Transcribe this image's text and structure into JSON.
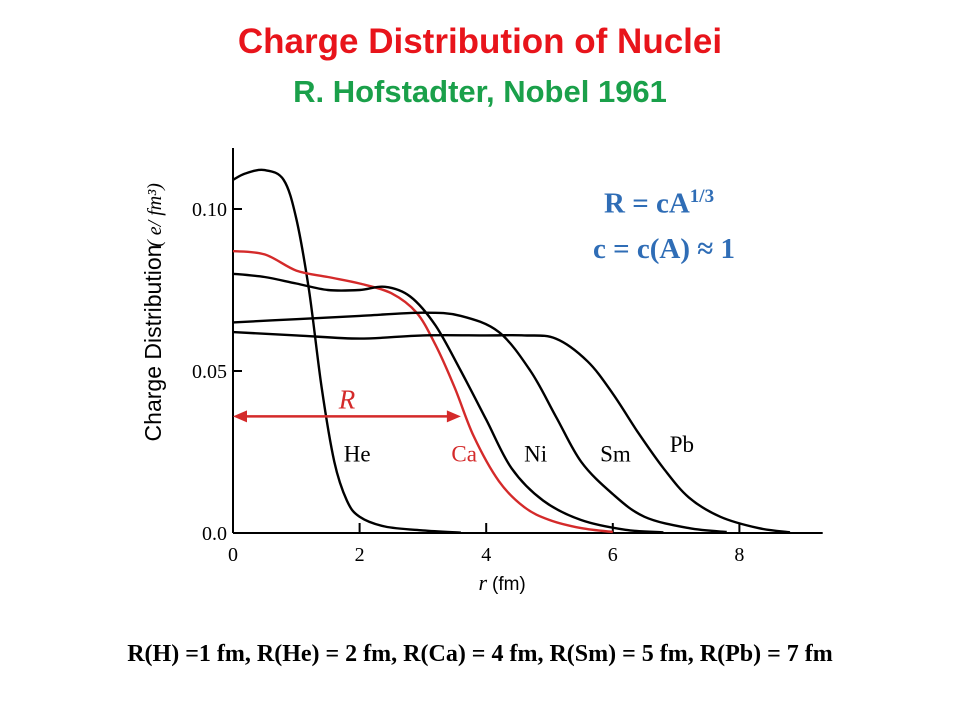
{
  "title": "Charge Distribution of Nuclei",
  "subtitle": "R. Hofstadter, Nobel 1961",
  "formula": {
    "line1_main": "R = cA",
    "line1_exp": "1/3",
    "line2": "c = c(A) ≈ 1"
  },
  "footer": "R(H) =1 fm, R(He) = 2 fm, R(Ca) = 4 fm, R(Sm) = 5 fm, R(Pb) = 7 fm",
  "colors": {
    "title": "#e8141b",
    "subtitle": "#1aa04a",
    "formula": "#2f6db6",
    "ca_curve": "#d42a2a",
    "curves": "#000000"
  },
  "chart_data": {
    "type": "line",
    "xlabel": "r",
    "xunit": "(fm)",
    "ylabel": "Charge Distribution",
    "yunit": "( e/ fm³)",
    "xlim": [
      0,
      9
    ],
    "ylim": [
      0,
      0.12
    ],
    "xticks": [
      0,
      2,
      4,
      6,
      8
    ],
    "xtick_labels": [
      "0",
      "2",
      "4",
      "6",
      "8"
    ],
    "yticks": [
      0.0,
      0.05,
      0.1
    ],
    "ytick_labels": [
      "0.0",
      "0.05",
      "0.10"
    ],
    "radius_annotation": {
      "label": "R",
      "from": 0,
      "to": 3.6,
      "y": 0.036
    },
    "series": [
      {
        "name": "He",
        "label_at": [
          1.75,
          0.022
        ],
        "points": [
          [
            0,
            0.109
          ],
          [
            0.2,
            0.111
          ],
          [
            0.5,
            0.112
          ],
          [
            0.8,
            0.109
          ],
          [
            1.0,
            0.097
          ],
          [
            1.2,
            0.075
          ],
          [
            1.4,
            0.045
          ],
          [
            1.6,
            0.022
          ],
          [
            1.8,
            0.01
          ],
          [
            2.0,
            0.005
          ],
          [
            2.4,
            0.002
          ],
          [
            3.0,
            0.0008
          ],
          [
            3.6,
            0.0001
          ]
        ]
      },
      {
        "name": "Ca",
        "label_at": [
          3.45,
          0.022
        ],
        "points": [
          [
            0,
            0.087
          ],
          [
            0.5,
            0.086
          ],
          [
            1.0,
            0.081
          ],
          [
            1.5,
            0.079
          ],
          [
            2.0,
            0.077
          ],
          [
            2.5,
            0.074
          ],
          [
            2.9,
            0.068
          ],
          [
            3.2,
            0.058
          ],
          [
            3.5,
            0.045
          ],
          [
            3.8,
            0.03
          ],
          [
            4.2,
            0.016
          ],
          [
            4.6,
            0.008
          ],
          [
            5.0,
            0.004
          ],
          [
            5.5,
            0.0015
          ],
          [
            6.0,
            0.0003
          ]
        ]
      },
      {
        "name": "Ni",
        "label_at": [
          4.6,
          0.022
        ],
        "points": [
          [
            0,
            0.08
          ],
          [
            0.5,
            0.079
          ],
          [
            1.0,
            0.077
          ],
          [
            1.5,
            0.075
          ],
          [
            2.0,
            0.075
          ],
          [
            2.4,
            0.076
          ],
          [
            2.8,
            0.073
          ],
          [
            3.2,
            0.064
          ],
          [
            3.6,
            0.05
          ],
          [
            4.0,
            0.035
          ],
          [
            4.4,
            0.02
          ],
          [
            4.9,
            0.01
          ],
          [
            5.5,
            0.004
          ],
          [
            6.2,
            0.001
          ],
          [
            6.8,
            0.0002
          ]
        ]
      },
      {
        "name": "Sm",
        "label_at": [
          5.8,
          0.022
        ],
        "points": [
          [
            0,
            0.065
          ],
          [
            1.0,
            0.066
          ],
          [
            2.0,
            0.067
          ],
          [
            3.0,
            0.068
          ],
          [
            3.6,
            0.067
          ],
          [
            4.2,
            0.062
          ],
          [
            4.7,
            0.05
          ],
          [
            5.1,
            0.036
          ],
          [
            5.5,
            0.022
          ],
          [
            6.0,
            0.012
          ],
          [
            6.5,
            0.005
          ],
          [
            7.2,
            0.0015
          ],
          [
            7.8,
            0.0003
          ]
        ]
      },
      {
        "name": "Pb",
        "label_at": [
          6.9,
          0.025
        ],
        "points": [
          [
            0,
            0.062
          ],
          [
            1.0,
            0.061
          ],
          [
            2.0,
            0.06
          ],
          [
            3.0,
            0.061
          ],
          [
            4.0,
            0.061
          ],
          [
            4.6,
            0.061
          ],
          [
            5.1,
            0.06
          ],
          [
            5.6,
            0.053
          ],
          [
            6.0,
            0.043
          ],
          [
            6.4,
            0.031
          ],
          [
            6.8,
            0.02
          ],
          [
            7.2,
            0.011
          ],
          [
            7.7,
            0.005
          ],
          [
            8.3,
            0.0015
          ],
          [
            8.8,
            0.0002
          ]
        ]
      }
    ]
  }
}
